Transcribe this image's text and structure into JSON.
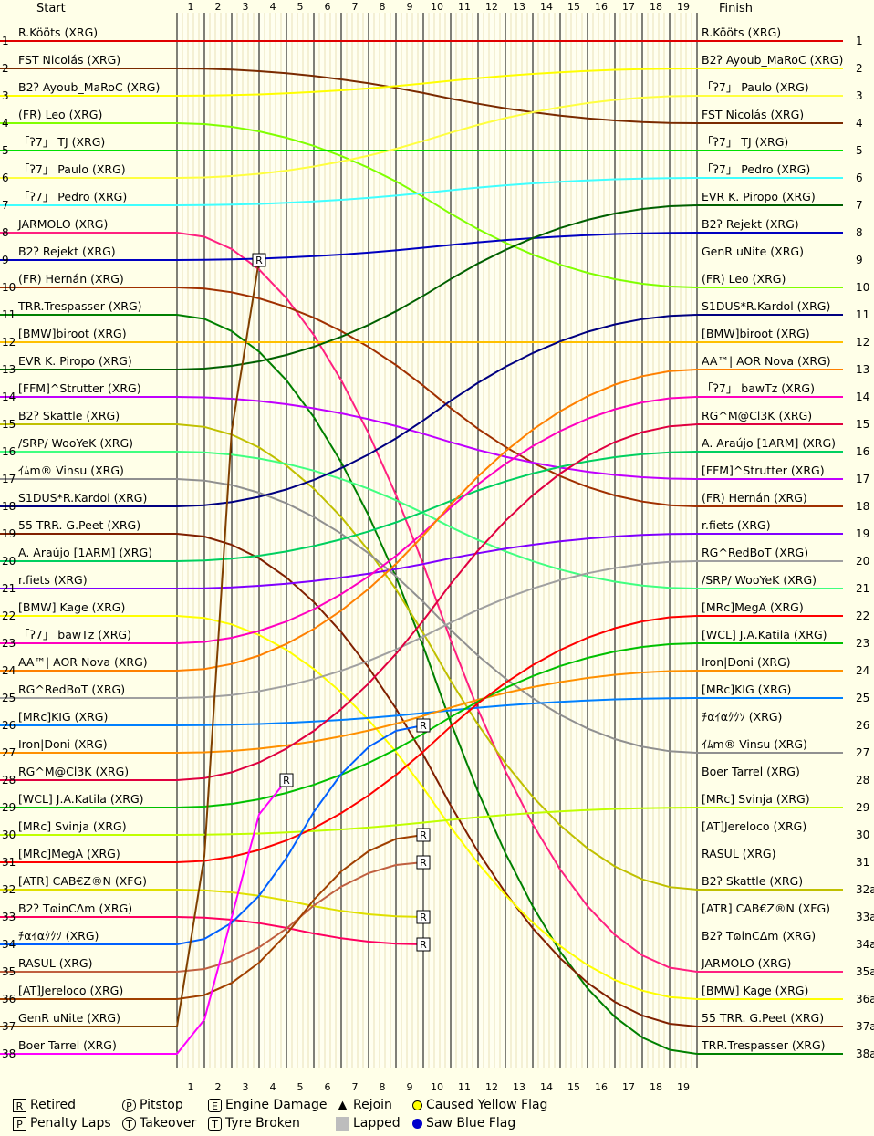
{
  "chart_data": {
    "type": "line",
    "header_start": "Start",
    "header_finish": "Finish",
    "laps": [
      1,
      2,
      3,
      4,
      5,
      6,
      7,
      8,
      9,
      10,
      11,
      12,
      13,
      14,
      15,
      16,
      17,
      18,
      19
    ],
    "start_positions": [
      "1",
      "2",
      "3",
      "4",
      "5",
      "6",
      "7",
      "8",
      "9",
      "10",
      "11",
      "12",
      "13",
      "14",
      "15",
      "16",
      "17",
      "18",
      "19",
      "20",
      "21",
      "22",
      "23",
      "24",
      "25",
      "26",
      "27",
      "28",
      "29",
      "30",
      "31",
      "32",
      "33",
      "34",
      "35",
      "36",
      "37",
      "38"
    ],
    "finish_positions": [
      "1",
      "2",
      "3",
      "4",
      "5",
      "6",
      "7",
      "8",
      "9",
      "10",
      "11",
      "12",
      "13",
      "14",
      "15",
      "16",
      "17",
      "18",
      "19",
      "20",
      "21",
      "22",
      "23",
      "24",
      "25",
      "26",
      "27",
      "28",
      "29",
      "30",
      "31",
      "32a",
      "33a",
      "34a",
      "35a",
      "36a",
      "37a",
      "38a"
    ],
    "start_grid": [
      "R.Kööts (XRG)",
      "FST Nicolás (XRG)",
      "B2ʔ Ayoub_MaRoC (XRG)",
      "(FR) Leo (XRG)",
      "「ʔ7」 TJ (XRG)",
      "「ʔ7」 Paulo (XRG)",
      "「ʔ7」 Pedro (XRG)",
      "JARMOLO (XRG)",
      "B2ʔ Rejekt (XRG)",
      "(FR) Hernán (XRG)",
      "TRR.Trespasser (XRG)",
      "[BMW]biroot (XRG)",
      "EVR K. Piropo (XRG)",
      "[FFM]^Strutter (XRG)",
      "B2ʔ Skattle (XRG)",
      "/SRP/ WooYeK (XRG)",
      "ｲﾑm® Vinsu (XRG)",
      "S1DUS*R.Kardol (XRG)",
      "55 TRR. G.Peet (XRG)",
      "A. Araújo [1ARM] (XRG)",
      "r.fiets (XRG)",
      "[BMW] Kage (XRG)",
      "「ʔ7」 bawTz (XRG)",
      "AA™| AOR Nova (XRG)",
      "RG^RedBoT (XRG)",
      "[MRc]KIG (XRG)",
      "Iron|Doni (XRG)",
      "RG^M@Cl3K (XRG)",
      "[WCL] J.A.Katila (XRG)",
      "[MRc] Svinja (XRG)",
      "[MRc]MegA (XRG)",
      "[ATR] CAB€Z®N (XFG)",
      "B2ʔ TɷinCΔm (XRG)",
      "ﾁαｲαｸｸｿ (XRG)",
      "RASUL (XRG)",
      "[AT]Jereloco (XRG)",
      "GenR uNite (XRG)",
      "Boer Tarrel (XRG)"
    ],
    "finish_order": [
      "R.Kööts (XRG)",
      "B2ʔ Ayoub_MaRoC (XRG)",
      "「ʔ7」 Paulo (XRG)",
      "FST Nicolás (XRG)",
      "「ʔ7」 TJ (XRG)",
      "「ʔ7」 Pedro (XRG)",
      "EVR K. Piropo (XRG)",
      "B2ʔ Rejekt (XRG)",
      "GenR uNite (XRG)",
      "(FR) Leo (XRG)",
      "S1DUS*R.Kardol (XRG)",
      "[BMW]biroot (XRG)",
      "AA™| AOR Nova (XRG)",
      "「ʔ7」 bawTz (XRG)",
      "RG^M@Cl3K (XRG)",
      "A. Araújo [1ARM] (XRG)",
      "[FFM]^Strutter (XRG)",
      "(FR) Hernán (XRG)",
      "r.fiets (XRG)",
      "RG^RedBoT (XRG)",
      "/SRP/ WooYeK (XRG)",
      "[MRc]MegA (XRG)",
      "[WCL] J.A.Katila (XRG)",
      "Iron|Doni (XRG)",
      "[MRc]KIG (XRG)",
      "ﾁαｲαｸｸｿ (XRG)",
      "ｲﾑm® Vinsu (XRG)",
      "Boer Tarrel (XRG)",
      "[MRc] Svinja (XRG)",
      "[AT]Jereloco (XRG)",
      "RASUL (XRG)",
      "B2ʔ Skattle (XRG)",
      "[ATR] CAB€Z®N (XFG)",
      "B2ʔ TɷinCΔm (XRG)",
      "JARMOLO (XRG)",
      "[BMW] Kage (XRG)",
      "55 TRR. G.Peet (XRG)",
      "TRR.Trespasser (XRG)"
    ],
    "driver_colors": [
      "#e00000",
      "#7a2a00",
      "#ffff00",
      "#80ff00",
      "#00e000",
      "#ffff40",
      "#40ffff",
      "#ff2080",
      "#0000c0",
      "#a03000",
      "#008000",
      "#ffc000",
      "#006000",
      "#c000ff",
      "#c0c000",
      "#40ff80",
      "#909090",
      "#000080",
      "#802000",
      "#00d060",
      "#8000ff",
      "#ffff00",
      "#ff00c0",
      "#ff8000",
      "#a0a0a0",
      "#0080ff",
      "#ff9000",
      "#e00040",
      "#00c000",
      "#c0ff00",
      "#ff0000",
      "#e0e000",
      "#ff0060",
      "#0060ff",
      "#c06040",
      "#a04000",
      "#804000",
      "#ff00ff"
    ],
    "laps_completed": [
      19,
      19,
      19,
      19,
      19,
      19,
      19,
      19,
      19,
      19,
      19,
      19,
      19,
      19,
      19,
      19,
      19,
      19,
      19,
      19,
      19,
      19,
      19,
      19,
      19,
      19,
      19,
      19,
      19,
      19,
      19,
      9,
      9,
      9,
      9,
      9,
      3,
      4
    ],
    "legend": [
      {
        "icon": "R",
        "label": "Retired"
      },
      {
        "icon": "P",
        "label": "Penalty Laps"
      },
      {
        "icon": "P",
        "label": "Pitstop"
      },
      {
        "icon": "T",
        "label": "Takeover"
      },
      {
        "icon": "E",
        "label": "Engine Damage"
      },
      {
        "icon": "T",
        "label": "Tyre Broken"
      },
      {
        "icon": "▲",
        "label": "Rejoin"
      },
      {
        "icon": "",
        "label": "Lapped"
      },
      {
        "icon": "",
        "label": "Caused Yellow Flag"
      },
      {
        "icon": "",
        "label": "Saw Blue Flag"
      }
    ]
  }
}
